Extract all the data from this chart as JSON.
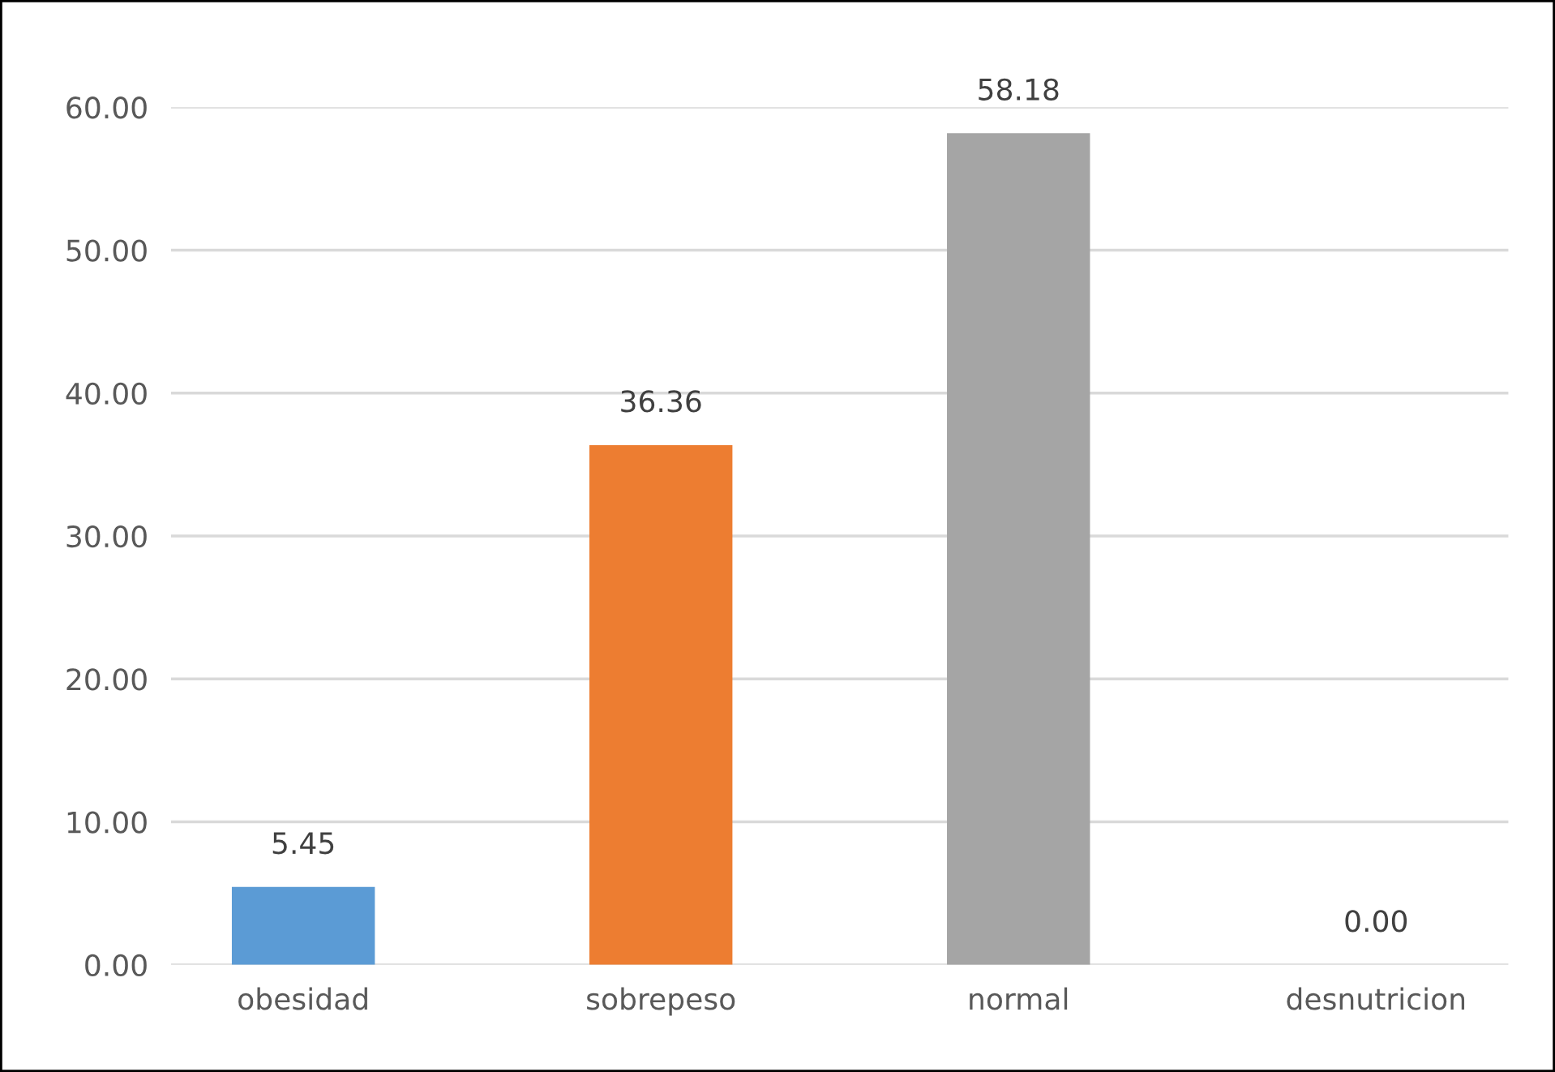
{
  "chart_data": {
    "type": "bar",
    "categories": [
      "obesidad",
      "sobrepeso",
      "normal",
      "desnutricion"
    ],
    "values": [
      5.45,
      36.36,
      58.18,
      0.0
    ],
    "colors": [
      "#5b9bd5",
      "#ed7d31",
      "#a5a5a5",
      "#c09000"
    ],
    "value_labels": [
      "5.45",
      "36.36",
      "58.18",
      "0.00"
    ],
    "ylim": [
      0,
      60
    ],
    "yticks": [
      {
        "value": 0,
        "label": "0.00"
      },
      {
        "value": 10,
        "label": "10.00"
      },
      {
        "value": 20,
        "label": "20.00"
      },
      {
        "value": 30,
        "label": "30.00"
      },
      {
        "value": 40,
        "label": "40.00"
      },
      {
        "value": 50,
        "label": "50.00"
      },
      {
        "value": 60,
        "label": "60.00"
      }
    ],
    "grid": "y",
    "legend": false
  }
}
